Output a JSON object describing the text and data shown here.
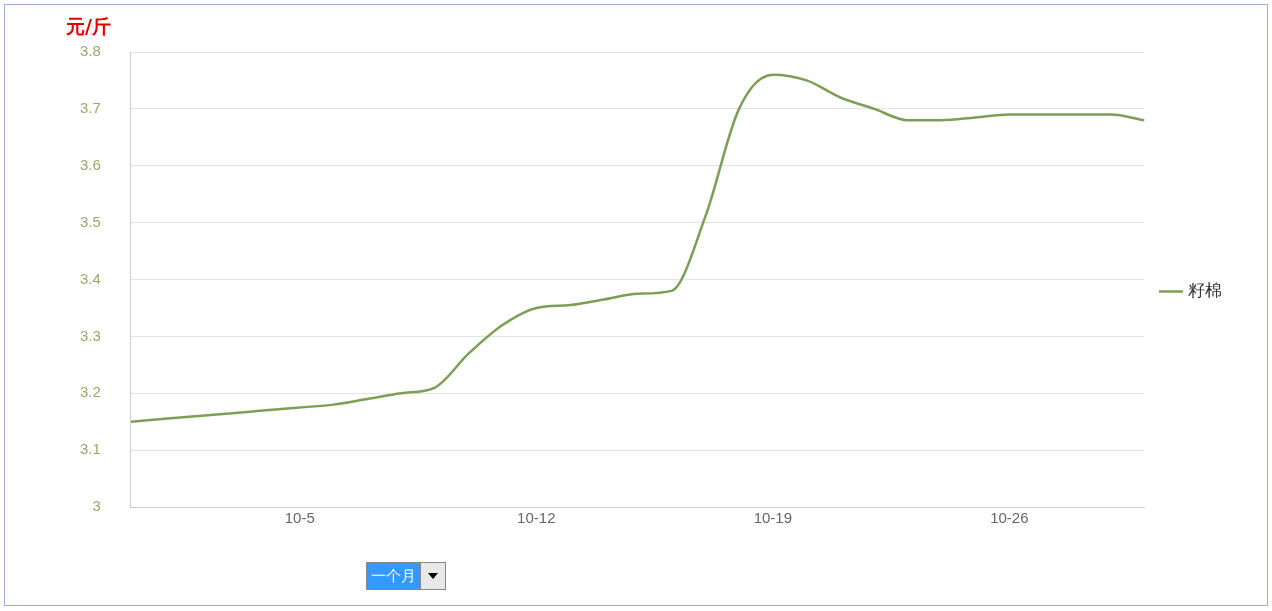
{
  "chart_data": {
    "type": "line",
    "ylabel": "元/斤",
    "x": [
      "--09-30",
      "--10-01",
      "--10-02",
      "--10-03",
      "--10-04",
      "--10-05",
      "--10-06",
      "--10-07",
      "--10-08",
      "--10-09",
      "--10-10",
      "--10-11",
      "--10-12",
      "--10-13",
      "--10-14",
      "--10-15",
      "--10-16",
      "--10-17",
      "--10-18",
      "--10-19",
      "--10-20",
      "--10-21",
      "--10-22",
      "--10-23",
      "--10-24",
      "--10-25",
      "--10-26",
      "--10-27",
      "--10-28",
      "--10-29",
      "--10-30"
    ],
    "series": [
      {
        "name": "籽棉",
        "color": "#7ba055",
        "values": [
          3.15,
          3.155,
          3.16,
          3.165,
          3.17,
          3.175,
          3.18,
          3.19,
          3.2,
          3.21,
          3.27,
          3.32,
          3.35,
          3.355,
          3.365,
          3.375,
          3.38,
          3.51,
          3.7,
          3.76,
          3.75,
          3.72,
          3.7,
          3.68,
          3.68,
          3.685,
          3.69,
          3.69,
          3.69,
          3.69,
          3.68
        ]
      }
    ],
    "xlim": [
      "--09-30",
      "--10-30"
    ],
    "xticks": [
      {
        "value": "--10-05",
        "label": "10-5"
      },
      {
        "value": "--10-12",
        "label": "10-12"
      },
      {
        "value": "--10-19",
        "label": "10-19"
      },
      {
        "value": "--10-26",
        "label": "10-26"
      }
    ],
    "ylim": [
      3,
      3.8
    ],
    "yticks": [
      3,
      3.1,
      3.2,
      3.3,
      3.4,
      3.5,
      3.6,
      3.7,
      3.8
    ],
    "grid": "y",
    "legend": "right",
    "marker": "none",
    "line_style": "solid",
    "annotations": [
      "一个月"
    ]
  }
}
